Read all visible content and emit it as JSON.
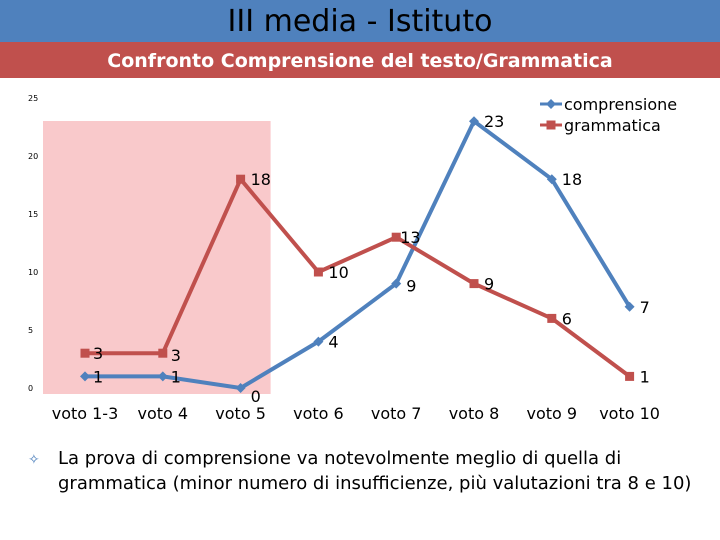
{
  "title": "III media - Istituto",
  "subtitle": "Confronto Comprensione del testo/Grammatica",
  "bullet": {
    "icon": "bullet-icon",
    "text": "La prova di comprensione va notevolmente meglio di quella di grammatica (minor numero di insufficienze, più valutazioni tra 8 e 10)"
  },
  "chart_data": {
    "type": "line",
    "categories": [
      "voto 1-3",
      "voto 4",
      "voto 5",
      "voto 6",
      "voto 7",
      "voto 8",
      "voto 9",
      "voto 10"
    ],
    "series": [
      {
        "name": "comprensione",
        "values": [
          1,
          1,
          0,
          4,
          9,
          23,
          18,
          7
        ],
        "color": "#4f81bd",
        "marker": "diamond"
      },
      {
        "name": "grammatica",
        "values": [
          3,
          3,
          18,
          10,
          13,
          9,
          6,
          1
        ],
        "color": "#c0504d",
        "marker": "square"
      }
    ],
    "ylim": [
      0,
      25
    ],
    "yticks": [
      0,
      5,
      10,
      15,
      20,
      25
    ],
    "highlight_range": [
      "voto 1-3",
      "voto 5"
    ],
    "highlight_color": "#f9c9cb",
    "grid": false,
    "legend": "top-right"
  }
}
